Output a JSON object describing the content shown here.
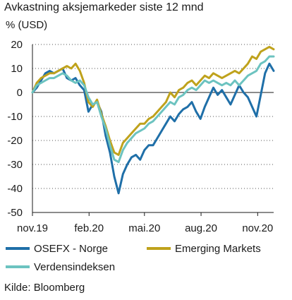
{
  "chart_data": {
    "type": "line",
    "title": "Avkastning aksjemarkeder siste 12 mnd",
    "ylabel": "% (USD)",
    "ylim": [
      -50,
      20
    ],
    "yticks": [
      20,
      10,
      0,
      -10,
      -20,
      -30,
      -40,
      -50
    ],
    "xlim": [
      "2019-11-01",
      "2020-11-27"
    ],
    "xticks": [
      {
        "label": "nov.19",
        "date": "2019-11-01"
      },
      {
        "label": "feb.20",
        "date": "2020-02-01"
      },
      {
        "label": "mai.20",
        "date": "2020-05-01"
      },
      {
        "label": "aug.20",
        "date": "2020-08-01"
      },
      {
        "label": "nov.20",
        "date": "2020-11-01"
      }
    ],
    "grid": "horizontal dotted",
    "legend_position": "bottom",
    "x": [
      "2019-11-01",
      "2019-11-08",
      "2019-11-15",
      "2019-11-22",
      "2019-11-29",
      "2019-12-06",
      "2019-12-13",
      "2019-12-20",
      "2019-12-27",
      "2020-01-03",
      "2020-01-10",
      "2020-01-17",
      "2020-01-24",
      "2020-01-31",
      "2020-02-07",
      "2020-02-14",
      "2020-02-21",
      "2020-02-28",
      "2020-03-06",
      "2020-03-13",
      "2020-03-20",
      "2020-03-27",
      "2020-04-03",
      "2020-04-10",
      "2020-04-17",
      "2020-04-24",
      "2020-05-01",
      "2020-05-08",
      "2020-05-15",
      "2020-05-22",
      "2020-05-29",
      "2020-06-05",
      "2020-06-12",
      "2020-06-19",
      "2020-06-26",
      "2020-07-03",
      "2020-07-10",
      "2020-07-17",
      "2020-07-24",
      "2020-07-31",
      "2020-08-07",
      "2020-08-14",
      "2020-08-21",
      "2020-08-28",
      "2020-09-04",
      "2020-09-11",
      "2020-09-18",
      "2020-09-25",
      "2020-10-02",
      "2020-10-09",
      "2020-10-16",
      "2020-10-23",
      "2020-10-30",
      "2020-11-06",
      "2020-11-13",
      "2020-11-20",
      "2020-11-27"
    ],
    "series": [
      {
        "name": "OSEFX - Norge",
        "color": "#1f6fa8",
        "values": [
          0,
          2,
          5,
          8,
          9,
          8,
          9,
          10,
          6,
          5,
          6,
          3,
          1,
          -8,
          -5,
          -4,
          -8,
          -18,
          -25,
          -35,
          -42,
          -34,
          -30,
          -27,
          -26,
          -28,
          -24,
          -22,
          -22,
          -19,
          -16,
          -13,
          -10,
          -12,
          -9,
          -7,
          -6,
          -4,
          -8,
          -11,
          -6,
          -2,
          2,
          -1,
          1,
          -2,
          -5,
          -1,
          3,
          0,
          -2,
          -6,
          -10,
          -1,
          8,
          12,
          9
        ]
      },
      {
        "name": "Emerging Markets",
        "color": "#bfa21c",
        "values": [
          0,
          4,
          6,
          7,
          8,
          8,
          9,
          10,
          11,
          10,
          12,
          9,
          4,
          -4,
          -6,
          -3,
          -9,
          -14,
          -20,
          -25,
          -26,
          -21,
          -19,
          -17,
          -15,
          -13,
          -13,
          -11,
          -10,
          -8,
          -6,
          -4,
          0,
          -2,
          1,
          2,
          4,
          5,
          3,
          5,
          7,
          6,
          8,
          7,
          6,
          7,
          8,
          9,
          8,
          10,
          12,
          15,
          14,
          17,
          18,
          19,
          18
        ]
      },
      {
        "name": "Verdensindeksen",
        "color": "#6cc3c0",
        "values": [
          0,
          3,
          4,
          5,
          6,
          6,
          7,
          8,
          7,
          5,
          4,
          5,
          3,
          -2,
          -5,
          -4,
          -10,
          -15,
          -22,
          -28,
          -29,
          -24,
          -21,
          -19,
          -17,
          -16,
          -15,
          -13,
          -12,
          -10,
          -8,
          -6,
          -4,
          -5,
          -2,
          -1,
          1,
          2,
          1,
          3,
          5,
          4,
          5,
          4,
          3,
          4,
          3,
          5,
          3,
          5,
          7,
          8,
          9,
          12,
          13,
          15,
          15
        ]
      }
    ]
  },
  "source": "Kilde: Bloomberg"
}
